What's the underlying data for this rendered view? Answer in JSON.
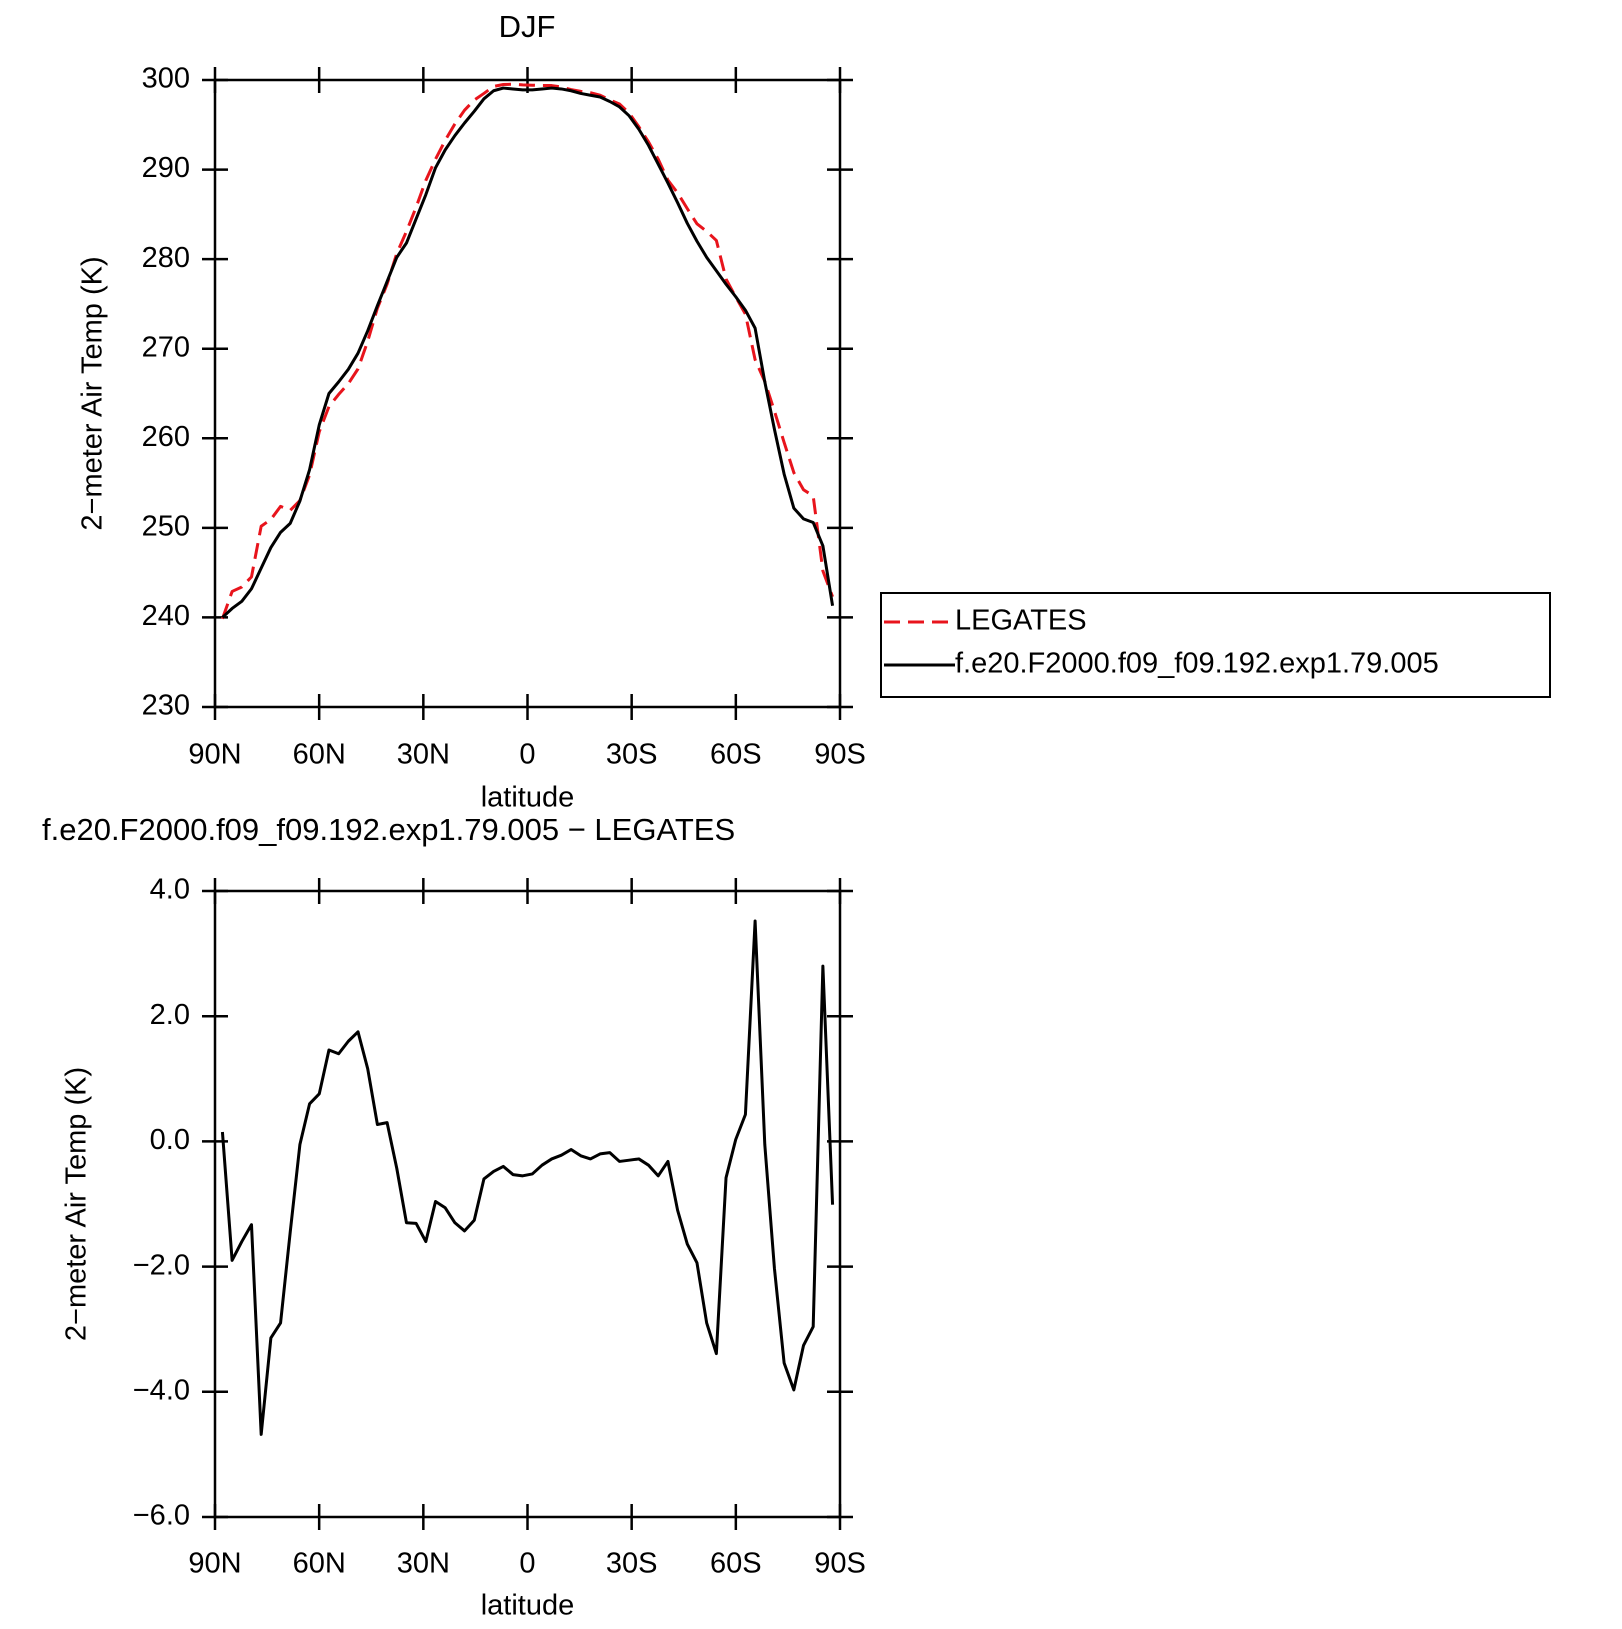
{
  "chart_data": [
    {
      "type": "line",
      "title": "DJF",
      "xlabel": "latitude",
      "ylabel": "2−meter Air Temp (K)",
      "x": [
        87.86,
        85.07,
        82.28,
        79.49,
        76.7,
        73.91,
        71.12,
        68.34,
        65.55,
        62.76,
        59.97,
        57.18,
        54.39,
        51.6,
        48.81,
        46.02,
        43.23,
        40.44,
        37.65,
        34.86,
        32.07,
        29.28,
        26.49,
        23.7,
        20.91,
        18.13,
        15.34,
        12.55,
        9.76,
        6.97,
        4.18,
        1.39,
        -1.39,
        -4.18,
        -6.97,
        -9.76,
        -12.55,
        -15.34,
        -18.13,
        -20.91,
        -23.7,
        -26.49,
        -29.28,
        -32.07,
        -34.86,
        -37.65,
        -40.44,
        -43.23,
        -46.02,
        -48.81,
        -51.6,
        -54.39,
        -57.18,
        -59.97,
        -62.76,
        -65.55,
        -68.34,
        -71.12,
        -73.91,
        -76.7,
        -79.49,
        -82.28,
        -85.07,
        -87.86
      ],
      "series": [
        {
          "name": "LEGATES",
          "color": "#e8141c",
          "dash": true,
          "values": [
            239.85,
            242.9,
            243.4,
            244.53,
            250.18,
            250.94,
            252.4,
            251.95,
            253.05,
            255.9,
            260.74,
            263.54,
            264.9,
            266.1,
            267.75,
            270.84,
            274.53,
            277.2,
            280.63,
            283.1,
            285.81,
            288.8,
            291.16,
            293.26,
            295.1,
            296.63,
            297.76,
            298.5,
            299.28,
            299.5,
            299.53,
            299.45,
            299.42,
            299.38,
            299.38,
            299.22,
            298.93,
            298.73,
            298.58,
            298.3,
            297.78,
            297.32,
            296.3,
            294.78,
            293.08,
            291.15,
            288.82,
            287.4,
            285.64,
            283.94,
            283.1,
            282.09,
            277.78,
            275.77,
            273.87,
            268.78,
            266.35,
            263.03,
            259.54,
            256.17,
            254.26,
            253.56,
            245.2,
            242.31
          ]
        },
        {
          "name": "f.e20.F2000.f09_f09.192.exp1.79.005",
          "color": "#000000",
          "dash": false,
          "values": [
            240,
            241,
            241.8,
            243.2,
            245.5,
            247.8,
            249.5,
            250.5,
            253,
            256.5,
            261.5,
            265,
            266.3,
            267.7,
            269.5,
            272,
            274.8,
            277.5,
            280.2,
            281.8,
            284.5,
            287.2,
            290.2,
            292.2,
            293.8,
            295.2,
            296.5,
            297.9,
            298.8,
            299.1,
            299.0,
            298.9,
            298.9,
            299.0,
            299.1,
            299.0,
            298.8,
            298.5,
            298.3,
            298.1,
            297.6,
            297.0,
            296.0,
            294.5,
            292.7,
            290.6,
            288.5,
            286.3,
            284.0,
            282.0,
            280.2,
            278.7,
            277.2,
            275.8,
            274.3,
            272.3,
            266.3,
            261.0,
            256.0,
            252.2,
            251.0,
            250.6,
            248.0,
            241.3
          ]
        }
      ],
      "xlim": [
        90,
        -90
      ],
      "xticks": [
        {
          "value": 90,
          "label": "90N"
        },
        {
          "value": 60,
          "label": "60N"
        },
        {
          "value": 30,
          "label": "30N"
        },
        0,
        {
          "value": -30,
          "label": "30S"
        },
        {
          "value": -60,
          "label": "60S"
        },
        {
          "value": -90,
          "label": "90S"
        }
      ],
      "ylim": [
        230,
        300
      ],
      "yticks": [
        230,
        240,
        250,
        260,
        270,
        280,
        290,
        300
      ],
      "legend": "right"
    },
    {
      "type": "line",
      "title": "f.e20.F2000.f09_f09.192.exp1.79.005 − LEGATES",
      "xlabel": "latitude",
      "ylabel": "2−meter Air Temp (K)",
      "x": [
        87.86,
        85.07,
        82.28,
        79.49,
        76.7,
        73.91,
        71.12,
        68.34,
        65.55,
        62.76,
        59.97,
        57.18,
        54.39,
        51.6,
        48.81,
        46.02,
        43.23,
        40.44,
        37.65,
        34.86,
        32.07,
        29.28,
        26.49,
        23.7,
        20.91,
        18.13,
        15.34,
        12.55,
        9.76,
        6.97,
        4.18,
        1.39,
        -1.39,
        -4.18,
        -6.97,
        -9.76,
        -12.55,
        -15.34,
        -18.13,
        -20.91,
        -23.7,
        -26.49,
        -29.28,
        -32.07,
        -34.86,
        -37.65,
        -40.44,
        -43.23,
        -46.02,
        -48.81,
        -51.6,
        -54.39,
        -57.18,
        -59.97,
        -62.76,
        -65.55,
        -68.34,
        -71.12,
        -73.91,
        -76.7,
        -79.49,
        -82.28,
        -85.07,
        -87.86
      ],
      "series": [
        {
          "color": "#000000",
          "dash": false,
          "values": [
            0.15,
            -1.9,
            -1.6,
            -1.33,
            -4.68,
            -3.14,
            -2.9,
            -1.45,
            -0.05,
            0.6,
            0.76,
            1.46,
            1.4,
            1.6,
            1.75,
            1.16,
            0.27,
            0.3,
            -0.43,
            -1.3,
            -1.31,
            -1.6,
            -0.96,
            -1.06,
            -1.3,
            -1.43,
            -1.26,
            -0.6,
            -0.48,
            -0.4,
            -0.53,
            -0.55,
            -0.52,
            -0.38,
            -0.28,
            -0.22,
            -0.13,
            -0.23,
            -0.28,
            -0.2,
            -0.18,
            -0.32,
            -0.3,
            -0.28,
            -0.38,
            -0.55,
            -0.32,
            -1.1,
            -1.64,
            -1.94,
            -2.9,
            -3.39,
            -0.58,
            0.03,
            0.43,
            3.52,
            -0.05,
            -2.03,
            -3.54,
            -3.97,
            -3.26,
            -2.96,
            2.8,
            -1.01
          ]
        }
      ],
      "xlim": [
        90,
        -90
      ],
      "xticks": [
        {
          "value": 90,
          "label": "90N"
        },
        {
          "value": 60,
          "label": "60N"
        },
        {
          "value": 30,
          "label": "30N"
        },
        0,
        {
          "value": -30,
          "label": "30S"
        },
        {
          "value": -60,
          "label": "60S"
        },
        {
          "value": -90,
          "label": "90S"
        }
      ],
      "ylim": [
        -6,
        4
      ],
      "yticks": [
        {
          "value": -6,
          "label": "−6.0"
        },
        {
          "value": -4,
          "label": "−4.0"
        },
        {
          "value": -2,
          "label": "−2.0"
        },
        {
          "value": 0,
          "label": "0.0"
        },
        {
          "value": 2,
          "label": "2.0"
        },
        {
          "value": 4,
          "label": "4.0"
        }
      ]
    }
  ]
}
